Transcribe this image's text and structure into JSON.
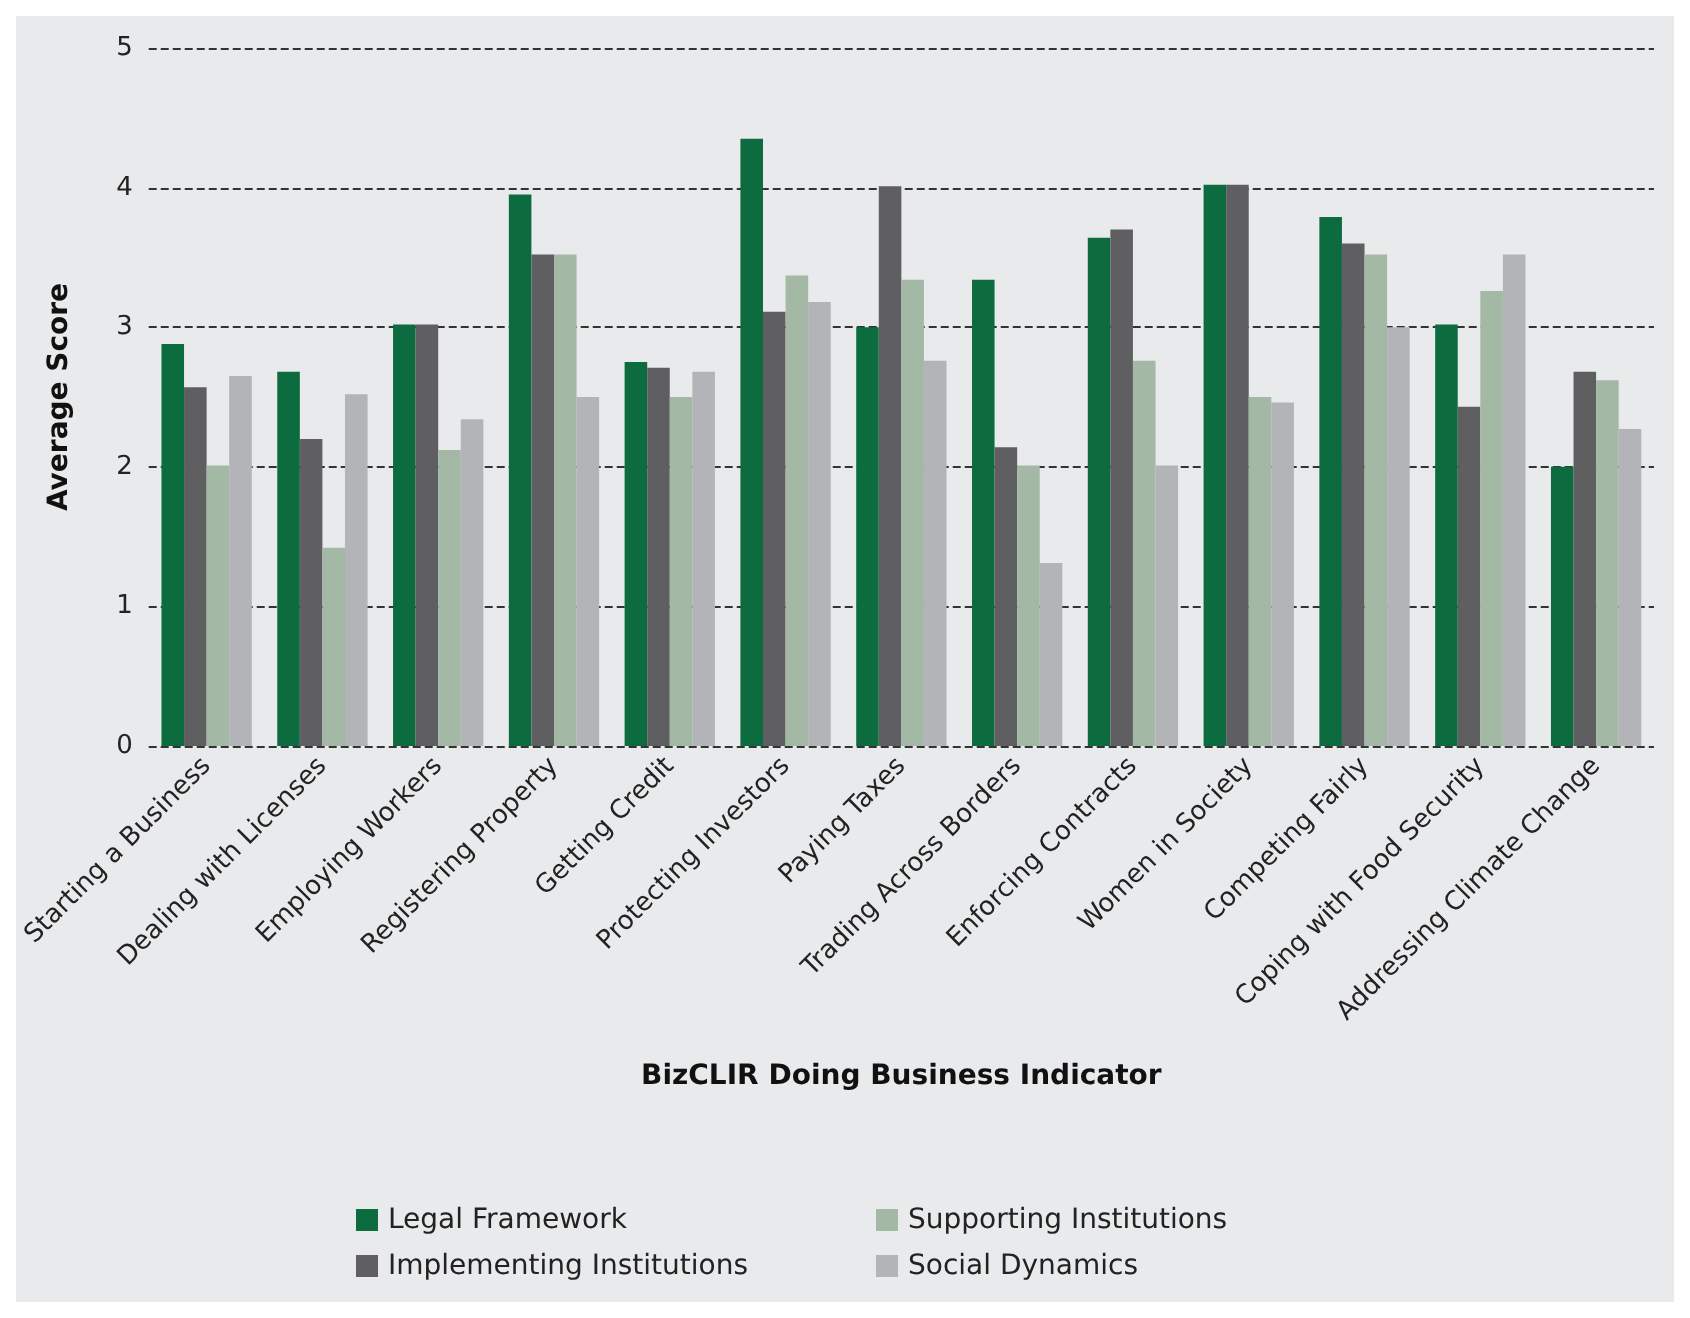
{
  "chart_data": {
    "type": "bar",
    "xlabel": "BizCLIR Doing Business Indicator",
    "ylabel": "Average Score",
    "categories": [
      "Starting a Business",
      "Dealing with Licenses",
      "Employing Workers",
      "Registering Property",
      "Getting Credit",
      "Protecting Investors",
      "Paying Taxes",
      "Trading Across Borders",
      "Enforcing Contracts",
      "Women in Society",
      "Competing Fairly",
      "Coping with Food Security",
      "Addressing Climate Change"
    ],
    "series": [
      {
        "name": "Legal Framework",
        "color": "#0d6b40",
        "values": [
          2.88,
          2.68,
          3.02,
          3.95,
          2.75,
          4.35,
          3.0,
          3.34,
          3.64,
          4.02,
          3.79,
          3.02,
          2.0
        ]
      },
      {
        "name": "Implementing Institutions",
        "color": "#5f5f61",
        "values": [
          2.57,
          2.2,
          3.02,
          3.52,
          2.71,
          3.11,
          4.01,
          2.14,
          3.7,
          4.02,
          3.6,
          2.43,
          2.68
        ]
      },
      {
        "name": "Supporting Institutions",
        "color": "#a3b8a5",
        "values": [
          2.01,
          1.42,
          2.12,
          3.52,
          2.5,
          3.37,
          3.34,
          2.01,
          2.76,
          2.5,
          3.52,
          3.26,
          2.62
        ]
      },
      {
        "name": "Social Dynamics",
        "color": "#b3b4b7",
        "values": [
          2.65,
          2.52,
          2.34,
          2.5,
          2.68,
          3.18,
          2.76,
          1.31,
          2.01,
          2.46,
          3.0,
          3.52,
          2.27
        ]
      }
    ],
    "ylim": [
      0,
      5
    ],
    "yticks": [
      0,
      1,
      2,
      3,
      4,
      5
    ],
    "grid": "y",
    "legend": "bottom"
  }
}
